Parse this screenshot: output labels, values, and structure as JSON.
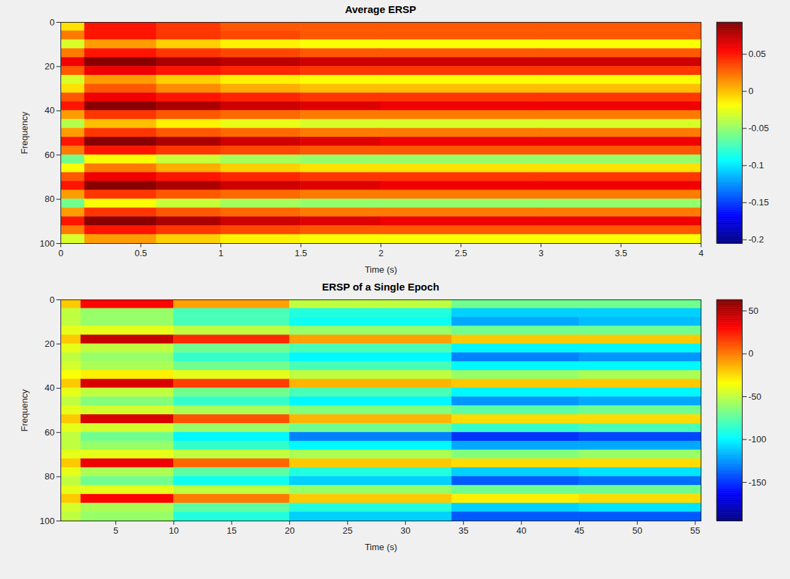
{
  "chart_data": [
    {
      "type": "heatmap",
      "title": "Average ERSP",
      "xlabel": "Time (s)",
      "ylabel": "Frequency",
      "color": "jet",
      "xlim": [
        0,
        4
      ],
      "ylim": [
        100,
        0
      ],
      "xticks": [
        0,
        0.5,
        1,
        1.5,
        2,
        2.5,
        3,
        3.5,
        4
      ],
      "yticks": [
        0,
        20,
        40,
        60,
        80,
        100
      ],
      "time_bins": [
        0,
        0.15,
        0.6,
        1,
        1.5,
        2,
        3,
        4
      ],
      "freq_bins": [
        0,
        4,
        8,
        12,
        16,
        20,
        24,
        28,
        32,
        36,
        40,
        44,
        48,
        52,
        56,
        60,
        64,
        68,
        72,
        76,
        80,
        84,
        88,
        92,
        96,
        100
      ],
      "cells": [
        [
          -0.01,
          0.05,
          0.04,
          0.03,
          0.03,
          0.03,
          0.03
        ],
        [
          0.02,
          0.05,
          0.04,
          0.035,
          0.03,
          0.03,
          0.03
        ],
        [
          -0.03,
          0.01,
          -0.005,
          -0.015,
          -0.02,
          -0.02,
          -0.02
        ],
        [
          0.02,
          0.05,
          0.04,
          0.035,
          0.03,
          0.03,
          0.03
        ],
        [
          0.06,
          0.09,
          0.08,
          0.075,
          0.07,
          0.07,
          0.07
        ],
        [
          0.03,
          0.06,
          0.05,
          0.045,
          0.04,
          0.04,
          0.04
        ],
        [
          -0.03,
          0.01,
          -0.005,
          -0.015,
          -0.02,
          -0.02,
          -0.02
        ],
        [
          -0.01,
          0.03,
          0.015,
          0.005,
          0.0,
          0.0,
          0.0
        ],
        [
          0.03,
          0.06,
          0.05,
          0.045,
          0.04,
          0.04,
          0.04
        ],
        [
          0.05,
          0.09,
          0.08,
          0.07,
          0.065,
          0.06,
          0.06
        ],
        [
          0.01,
          0.04,
          0.03,
          0.025,
          0.02,
          0.02,
          0.02
        ],
        [
          -0.04,
          0.0,
          -0.015,
          -0.025,
          -0.03,
          -0.03,
          -0.03
        ],
        [
          0.01,
          0.04,
          0.03,
          0.025,
          0.02,
          0.02,
          0.02
        ],
        [
          0.05,
          0.09,
          0.08,
          0.07,
          0.065,
          0.06,
          0.06
        ],
        [
          0.02,
          0.05,
          0.04,
          0.035,
          0.03,
          0.03,
          0.03
        ],
        [
          -0.06,
          -0.02,
          -0.035,
          -0.045,
          -0.05,
          -0.05,
          -0.05
        ],
        [
          -0.02,
          0.02,
          0.005,
          -0.005,
          -0.01,
          -0.01,
          -0.01
        ],
        [
          0.03,
          0.06,
          0.05,
          0.045,
          0.04,
          0.04,
          0.04
        ],
        [
          0.05,
          0.09,
          0.08,
          0.07,
          0.065,
          0.06,
          0.06
        ],
        [
          0.01,
          0.04,
          0.03,
          0.025,
          0.02,
          0.02,
          0.02
        ],
        [
          -0.06,
          -0.02,
          -0.035,
          -0.045,
          -0.05,
          -0.05,
          -0.05
        ],
        [
          0.01,
          0.04,
          0.03,
          0.025,
          0.02,
          0.02,
          0.02
        ],
        [
          0.05,
          0.09,
          0.08,
          0.07,
          0.065,
          0.06,
          0.06
        ],
        [
          0.02,
          0.05,
          0.04,
          0.035,
          0.03,
          0.03,
          0.03
        ],
        [
          -0.03,
          0.01,
          -0.005,
          -0.015,
          -0.02,
          -0.02,
          -0.02
        ]
      ],
      "colorbar": {
        "range": [
          -0.205,
          0.093
        ],
        "ticks": [
          -0.2,
          -0.15,
          -0.1,
          -0.05,
          0,
          0.05
        ]
      }
    },
    {
      "type": "heatmap",
      "title": "ERSP of a Single Epoch",
      "xlabel": "Time (s)",
      "ylabel": "Frequency",
      "color": "jet",
      "xlim": [
        0.25,
        55.5
      ],
      "ylim": [
        100,
        0
      ],
      "xticks": [
        5,
        10,
        15,
        20,
        25,
        30,
        35,
        40,
        45,
        50,
        55
      ],
      "yticks": [
        0,
        20,
        40,
        60,
        80,
        100
      ],
      "time_bins": [
        0.25,
        2,
        10,
        20,
        34,
        45,
        55.5
      ],
      "freq_bins": [
        0,
        4,
        8,
        12,
        16,
        20,
        24,
        28,
        32,
        36,
        40,
        44,
        48,
        52,
        56,
        60,
        64,
        68,
        72,
        76,
        80,
        84,
        88,
        92,
        96,
        100
      ],
      "cells": [
        [
          -20,
          30,
          -10,
          -50,
          -70,
          -70
        ],
        [
          -50,
          -60,
          -80,
          -90,
          -110,
          -110
        ],
        [
          -50,
          -60,
          -80,
          -95,
          -120,
          -115
        ],
        [
          -40,
          -40,
          -50,
          -60,
          -70,
          -70
        ],
        [
          -20,
          45,
          20,
          -10,
          -20,
          -20
        ],
        [
          -40,
          -50,
          -70,
          -80,
          -100,
          -100
        ],
        [
          -50,
          -60,
          -85,
          -100,
          -130,
          -125
        ],
        [
          -45,
          -55,
          -70,
          -80,
          -100,
          -100
        ],
        [
          -35,
          -30,
          -40,
          -50,
          -60,
          -55
        ],
        [
          -20,
          40,
          15,
          -15,
          -20,
          -20
        ],
        [
          -40,
          -50,
          -70,
          -80,
          -100,
          -100
        ],
        [
          -50,
          -65,
          -85,
          -100,
          -125,
          -120
        ],
        [
          -40,
          -45,
          -55,
          -65,
          -75,
          -70
        ],
        [
          -20,
          40,
          10,
          -15,
          -25,
          -25
        ],
        [
          -40,
          -45,
          -60,
          -70,
          -85,
          -80
        ],
        [
          -50,
          -70,
          -100,
          -130,
          -150,
          -145
        ],
        [
          -50,
          -60,
          -85,
          -100,
          -120,
          -120
        ],
        [
          -40,
          -40,
          -50,
          -55,
          -65,
          -60
        ],
        [
          -20,
          35,
          5,
          -20,
          -25,
          -25
        ],
        [
          -40,
          -55,
          -75,
          -90,
          -110,
          -105
        ],
        [
          -50,
          -70,
          -95,
          -110,
          -140,
          -135
        ],
        [
          -40,
          -40,
          -50,
          -60,
          -70,
          -70
        ],
        [
          -20,
          30,
          0,
          -20,
          -30,
          -25
        ],
        [
          -45,
          -55,
          -75,
          -90,
          -110,
          -105
        ],
        [
          -50,
          -60,
          -90,
          -110,
          -140,
          -140
        ]
      ],
      "colorbar": {
        "range": [
          -195,
          63
        ],
        "ticks": [
          -150,
          -100,
          -50,
          0,
          50
        ]
      }
    }
  ]
}
